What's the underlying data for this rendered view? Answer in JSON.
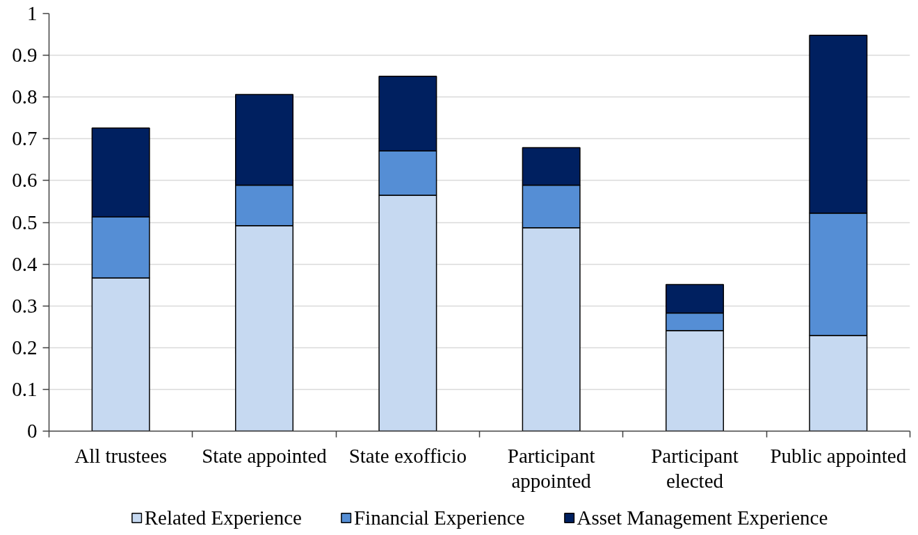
{
  "chart_data": {
    "type": "bar",
    "stacked": true,
    "categories": [
      "All trustees",
      "State appointed",
      "State exofficio",
      "Participant appointed",
      "Participant elected",
      "Public appointed"
    ],
    "series": [
      {
        "name": "Related Experience",
        "color": "#c6d9f1",
        "values": [
          0.367,
          0.492,
          0.565,
          0.487,
          0.241,
          0.229
        ]
      },
      {
        "name": "Financial Experience",
        "color": "#558ed5",
        "values": [
          0.146,
          0.097,
          0.106,
          0.102,
          0.042,
          0.293
        ]
      },
      {
        "name": "Asset Management Experience",
        "color": "#002060",
        "values": [
          0.213,
          0.217,
          0.179,
          0.09,
          0.068,
          0.426
        ]
      }
    ],
    "ylim": [
      0,
      1
    ],
    "yticks": [
      0,
      0.1,
      0.2,
      0.3,
      0.4,
      0.5,
      0.6,
      0.7,
      0.8,
      0.9,
      1
    ],
    "grid": "y",
    "legend": "bottom"
  }
}
